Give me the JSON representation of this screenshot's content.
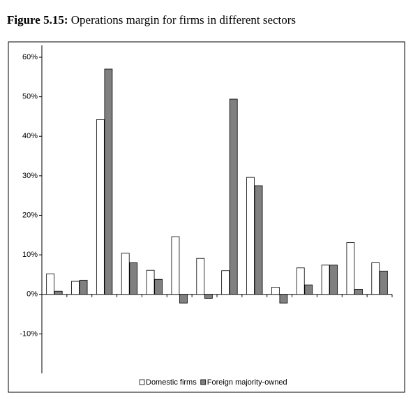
{
  "chart_data": {
    "type": "bar",
    "figure_label": "Figure 5.15:",
    "title": "Operations margin for firms in different sectors",
    "categories": [
      null,
      null,
      null,
      null,
      null,
      null,
      null,
      null,
      null,
      null,
      null,
      null,
      null,
      null
    ],
    "series": [
      {
        "name": "Domestic firms",
        "color": "#ffffff",
        "values": [
          5.2,
          3.3,
          44.2,
          10.4,
          6.1,
          14.6,
          9.1,
          6.0,
          29.6,
          1.8,
          6.7,
          7.4,
          13.1,
          8.0
        ]
      },
      {
        "name": "Foreign majority-owned",
        "color": "#808080",
        "values": [
          0.8,
          3.6,
          57.0,
          8.0,
          3.8,
          -2.2,
          -1.0,
          49.4,
          27.5,
          -2.2,
          2.4,
          7.4,
          1.3,
          5.9
        ]
      }
    ],
    "ylim": [
      -20,
      63
    ],
    "yticks": [
      {
        "value": -10,
        "label": "-10%"
      },
      {
        "value": 0,
        "label": "0%"
      },
      {
        "value": 10,
        "label": "10%"
      },
      {
        "value": 20,
        "label": "20%"
      },
      {
        "value": 30,
        "label": "30%"
      },
      {
        "value": 40,
        "label": "40%"
      },
      {
        "value": 50,
        "label": "50%"
      },
      {
        "value": 60,
        "label": "60%"
      }
    ],
    "legend": "bottom"
  }
}
